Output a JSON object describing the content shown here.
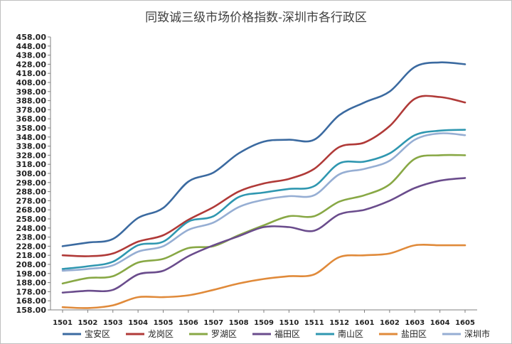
{
  "chart_data": {
    "type": "line",
    "title": "同致诚三级市场价格指数-深圳市各行政区",
    "xlabel": "",
    "ylabel": "",
    "x": [
      "1501",
      "1502",
      "1503",
      "1504",
      "1505",
      "1506",
      "1507",
      "1508",
      "1509",
      "1510",
      "1511",
      "1512",
      "1601",
      "1602",
      "1603",
      "1604",
      "1605"
    ],
    "yticks": [
      "158.00",
      "168.00",
      "178.00",
      "188.00",
      "198.00",
      "208.00",
      "218.00",
      "228.00",
      "238.00",
      "248.00",
      "258.00",
      "268.00",
      "278.00",
      "288.00",
      "298.00",
      "308.00",
      "318.00",
      "328.00",
      "338.00",
      "348.00",
      "358.00",
      "368.00",
      "378.00",
      "388.00",
      "398.00",
      "408.00",
      "418.00",
      "428.00",
      "438.00",
      "448.00",
      "458.00"
    ],
    "ylim": [
      158,
      458
    ],
    "grid": false,
    "legend_position": "bottom",
    "series": [
      {
        "name": "宝安区",
        "color": "#3b6aa0",
        "values": [
          228,
          232,
          236,
          259,
          270,
          299,
          309,
          330,
          343,
          345,
          345,
          372,
          386,
          398,
          425,
          430,
          428
        ]
      },
      {
        "name": "龙岗区",
        "color": "#b03a38",
        "values": [
          218,
          217,
          220,
          233,
          240,
          257,
          271,
          288,
          297,
          302,
          313,
          337,
          342,
          360,
          390,
          392,
          386
        ]
      },
      {
        "name": "罗湖区",
        "color": "#88a845",
        "values": [
          187,
          193,
          195,
          210,
          214,
          226,
          228,
          240,
          251,
          261,
          261,
          277,
          284,
          296,
          324,
          328,
          328
        ]
      },
      {
        "name": "福田区",
        "color": "#6a4c8c",
        "values": [
          177,
          179,
          180,
          197,
          201,
          217,
          229,
          239,
          249,
          249,
          245,
          263,
          268,
          278,
          292,
          300,
          303
        ]
      },
      {
        "name": "南山区",
        "color": "#2f97b0",
        "values": [
          203,
          206,
          211,
          229,
          233,
          255,
          261,
          282,
          287,
          291,
          294,
          319,
          321,
          330,
          350,
          355,
          356
        ]
      },
      {
        "name": "盐田区",
        "color": "#e08a3a",
        "values": [
          161,
          160,
          163,
          172,
          172,
          174,
          180,
          187,
          192,
          195,
          197,
          216,
          218,
          220,
          229,
          229,
          229
        ]
      },
      {
        "name": "深圳市",
        "color": "#96aed3",
        "values": [
          201,
          203,
          207,
          222,
          228,
          246,
          254,
          271,
          279,
          283,
          284,
          307,
          313,
          322,
          345,
          352,
          350
        ]
      }
    ]
  }
}
